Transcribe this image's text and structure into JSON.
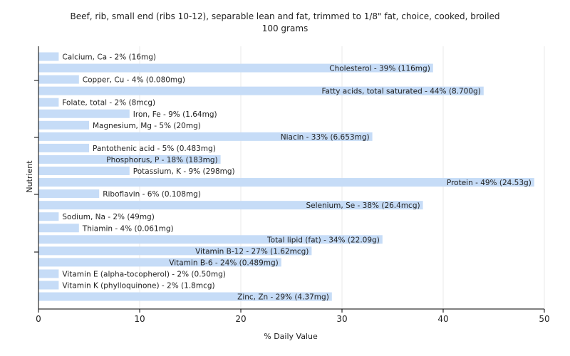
{
  "chart_data": {
    "type": "bar",
    "orientation": "horizontal",
    "title": "Beef, rib, small end (ribs 10-12), separable lean and fat, trimmed to 1/8\" fat, choice, cooked, broiled",
    "subtitle": "100 grams",
    "xlabel": "% Daily Value",
    "ylabel": "Nutrient",
    "xlim": [
      0,
      50
    ],
    "xticks": [
      0,
      10,
      20,
      30,
      40,
      50
    ],
    "grid": true,
    "bar_color": "#c6dcf7",
    "categories": [
      "Calcium, Ca",
      "Cholesterol",
      "Copper, Cu",
      "Fatty acids, total saturated",
      "Folate, total",
      "Iron, Fe",
      "Magnesium, Mg",
      "Niacin",
      "Pantothenic acid",
      "Phosphorus, P",
      "Potassium, K",
      "Protein",
      "Riboflavin",
      "Selenium, Se",
      "Sodium, Na",
      "Thiamin",
      "Total lipid (fat)",
      "Vitamin B-12",
      "Vitamin B-6",
      "Vitamin E (alpha-tocopherol)",
      "Vitamin K (phylloquinone)",
      "Zinc, Zn"
    ],
    "values": [
      2,
      39,
      4,
      44,
      2,
      9,
      5,
      33,
      5,
      18,
      9,
      49,
      6,
      38,
      2,
      4,
      34,
      27,
      24,
      2,
      2,
      29
    ],
    "labels": [
      "Calcium, Ca - 2% (16mg)",
      "Cholesterol - 39% (116mg)",
      "Copper, Cu - 4% (0.080mg)",
      "Fatty acids, total saturated - 44% (8.700g)",
      "Folate, total - 2% (8mcg)",
      "Iron, Fe - 9% (1.64mg)",
      "Magnesium, Mg - 5% (20mg)",
      "Niacin - 33% (6.653mg)",
      "Pantothenic acid - 5% (0.483mg)",
      "Phosphorus, P - 18% (183mg)",
      "Potassium, K - 9% (298mg)",
      "Protein - 49% (24.53g)",
      "Riboflavin - 6% (0.108mg)",
      "Selenium, Se - 38% (26.4mcg)",
      "Sodium, Na - 2% (49mg)",
      "Thiamin - 4% (0.061mg)",
      "Total lipid (fat) - 34% (22.09g)",
      "Vitamin B-12 - 27% (1.62mcg)",
      "Vitamin B-6 - 24% (0.489mg)",
      "Vitamin E (alpha-tocopherol) - 2% (0.50mg)",
      "Vitamin K (phylloquinone) - 2% (1.8mcg)",
      "Zinc, Zn - 29% (4.37mg)"
    ]
  }
}
